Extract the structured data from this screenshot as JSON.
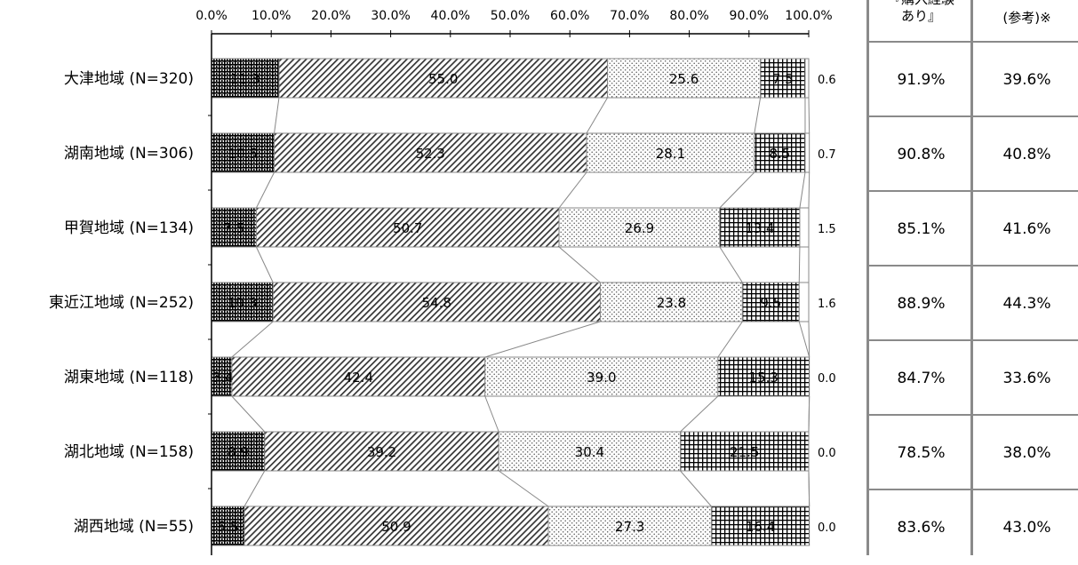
{
  "chart_data": {
    "type": "bar",
    "orientation": "horizontal",
    "stacked": true,
    "percent": true,
    "x_ticks": [
      "0.0%",
      "10.0%",
      "20.0%",
      "30.0%",
      "40.0%",
      "50.0%",
      "60.0%",
      "70.0%",
      "80.0%",
      "90.0%",
      "100.0%"
    ],
    "xlim": [
      0,
      100
    ],
    "categories": [
      "大津地域 (N=320)",
      "湖南地域 (N=306)",
      "甲賀地域 (N=134)",
      "東近江地域 (N=252)",
      "湖東地域 (N=118)",
      "湖北地域 (N=158)",
      "湖西地域 (N=55)"
    ],
    "series": [
      {
        "values": [
          11.3,
          10.5,
          7.5,
          10.3,
          3.4,
          8.9,
          5.5
        ],
        "pattern": "dense-bricks",
        "color": "#000000"
      },
      {
        "values": [
          55.0,
          52.3,
          50.7,
          54.8,
          42.4,
          39.2,
          50.9
        ],
        "pattern": "diagonal-hatch",
        "color": "#000000"
      },
      {
        "values": [
          25.6,
          28.1,
          26.9,
          23.8,
          39.0,
          30.4,
          27.3
        ],
        "pattern": "dots",
        "color": "#000000"
      },
      {
        "values": [
          7.5,
          8.5,
          13.4,
          9.5,
          15.3,
          21.5,
          16.4
        ],
        "pattern": "grid",
        "color": "#000000"
      },
      {
        "values": [
          0.6,
          0.7,
          1.5,
          1.6,
          0.0,
          0.0,
          0.0
        ],
        "pattern": "none",
        "color": "#ffffff"
      }
    ],
    "connector_lines": true,
    "grid": false,
    "legend": "none"
  },
  "side_table": {
    "columns": [
      {
        "header_lines": [
          "『購入経験",
          "あり』"
        ],
        "values": [
          "91.9%",
          "90.8%",
          "85.1%",
          "88.9%",
          "84.7%",
          "78.5%",
          "83.6%"
        ]
      },
      {
        "header_lines": [
          "(参考)※"
        ],
        "values": [
          "39.6%",
          "40.8%",
          "41.6%",
          "44.3%",
          "33.6%",
          "38.0%",
          "43.0%"
        ]
      }
    ]
  }
}
